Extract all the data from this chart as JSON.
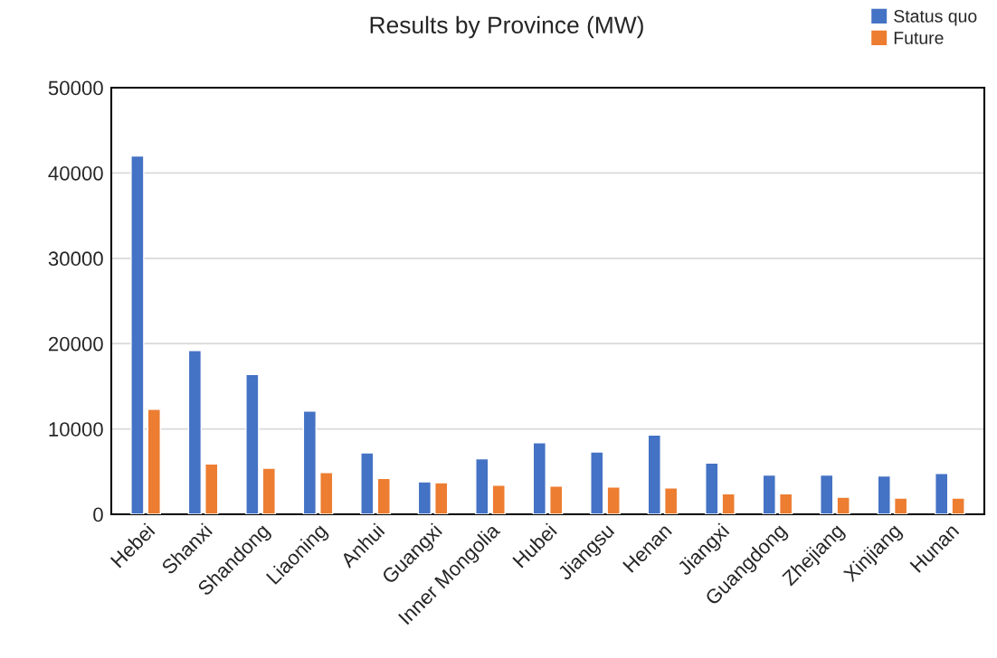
{
  "chart_data": {
    "type": "bar",
    "title": "Results by Province (MW)",
    "categories": [
      "Hebei",
      "Shanxi",
      "Shandong",
      "Liaoning",
      "Anhui",
      "Guangxi",
      "Inner Mongolia",
      "Hubei",
      "Jiangsu",
      "Henan",
      "Jiangxi",
      "Guangdong",
      "Zhejiang",
      "Xinjiang",
      "Hunan"
    ],
    "series": [
      {
        "name": "Status quo",
        "color": "#4472c4",
        "values": [
          42000,
          19200,
          16400,
          12100,
          7200,
          3800,
          6500,
          8400,
          7300,
          9300,
          6000,
          4600,
          4600,
          4500,
          4800
        ]
      },
      {
        "name": "Future",
        "color": "#ed7d31",
        "values": [
          12300,
          5900,
          5400,
          4900,
          4200,
          3700,
          3400,
          3300,
          3200,
          3100,
          2400,
          2400,
          2000,
          1900,
          1900
        ]
      }
    ],
    "ylim": [
      0,
      50000
    ],
    "yticks": [
      0,
      10000,
      20000,
      30000,
      40000,
      50000
    ],
    "grid": "y",
    "legend": "top right"
  }
}
